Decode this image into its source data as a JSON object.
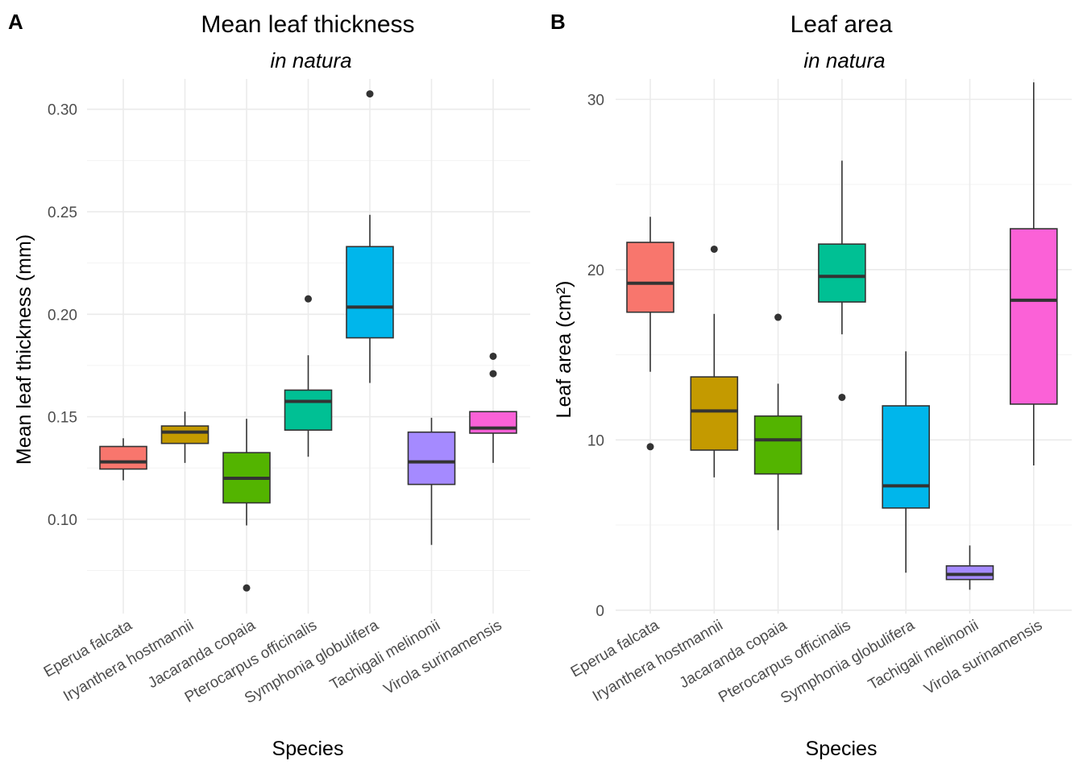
{
  "chart_data": [
    {
      "type": "boxplot",
      "tag": "A",
      "title": "Mean leaf thickness",
      "subtitle": "in natura",
      "xlabel": "Species",
      "ylabel": "Mean leaf thickness (mm)",
      "ylim": [
        0.054,
        0.3148
      ],
      "yticks": [
        0.1,
        0.15,
        0.2,
        0.25,
        0.3
      ],
      "ytick_labels": [
        "0.10",
        "0.15",
        "0.20",
        "0.25",
        "0.30"
      ],
      "grid": true,
      "legend": "none",
      "categories": [
        "Eperua falcata",
        "Iryanthera hostmannii",
        "Jacaranda copaia",
        "Pterocarpus officinalis",
        "Symphonia globulifera",
        "Tachigali melinonii",
        "Virola surinamensis"
      ],
      "colors": [
        "#F8766D",
        "#C49A00",
        "#53B400",
        "#00C094",
        "#00B6EB",
        "#A58AFF",
        "#FB61D7"
      ],
      "boxes": [
        {
          "min": 0.119,
          "q1": 0.1245,
          "median": 0.128,
          "q3": 0.1355,
          "max": 0.1395,
          "outliers": []
        },
        {
          "min": 0.1275,
          "q1": 0.137,
          "median": 0.1425,
          "q3": 0.1455,
          "max": 0.1525,
          "outliers": []
        },
        {
          "min": 0.097,
          "q1": 0.108,
          "median": 0.12,
          "q3": 0.1325,
          "max": 0.149,
          "outliers": [
            0.0665
          ]
        },
        {
          "min": 0.1305,
          "q1": 0.1435,
          "median": 0.1575,
          "q3": 0.163,
          "max": 0.18,
          "outliers": [
            0.2075
          ]
        },
        {
          "min": 0.1665,
          "q1": 0.1885,
          "median": 0.2035,
          "q3": 0.233,
          "max": 0.2485,
          "outliers": [
            0.3075
          ]
        },
        {
          "min": 0.0875,
          "q1": 0.117,
          "median": 0.128,
          "q3": 0.1425,
          "max": 0.1495,
          "outliers": []
        },
        {
          "min": 0.1275,
          "q1": 0.142,
          "median": 0.1445,
          "q3": 0.1525,
          "max": 0.1525,
          "outliers": [
            0.171,
            0.1795
          ]
        }
      ]
    },
    {
      "type": "boxplot",
      "tag": "B",
      "title": "Leaf area",
      "subtitle": "in natura",
      "xlabel": "Species",
      "ylabel": "Leaf area (cm²)",
      "ylim": [
        -0.2,
        31.2
      ],
      "yticks": [
        0,
        10,
        20,
        30
      ],
      "ytick_labels": [
        "0",
        "10",
        "20",
        "30"
      ],
      "grid": true,
      "legend": "none",
      "categories": [
        "Eperua falcata",
        "Iryanthera hostmannii",
        "Jacaranda copaia",
        "Pterocarpus officinalis",
        "Symphonia globulifera",
        "Tachigali melinonii",
        "Virola surinamensis"
      ],
      "colors": [
        "#F8766D",
        "#C49A00",
        "#53B400",
        "#00C094",
        "#00B6EB",
        "#A58AFF",
        "#FB61D7"
      ],
      "boxes": [
        {
          "min": 14.0,
          "q1": 17.5,
          "median": 19.2,
          "q3": 21.6,
          "max": 23.1,
          "outliers": [
            9.6
          ]
        },
        {
          "min": 7.8,
          "q1": 9.4,
          "median": 11.7,
          "q3": 13.7,
          "max": 17.4,
          "outliers": [
            21.2
          ]
        },
        {
          "min": 4.7,
          "q1": 8.0,
          "median": 10.0,
          "q3": 11.4,
          "max": 13.3,
          "outliers": [
            17.2
          ]
        },
        {
          "min": 16.2,
          "q1": 18.1,
          "median": 19.6,
          "q3": 21.5,
          "max": 26.4,
          "outliers": [
            12.5
          ]
        },
        {
          "min": 2.2,
          "q1": 6.0,
          "median": 7.3,
          "q3": 12.0,
          "max": 15.2,
          "outliers": []
        },
        {
          "min": 1.2,
          "q1": 1.8,
          "median": 2.1,
          "q3": 2.6,
          "max": 3.8,
          "outliers": []
        },
        {
          "min": 8.5,
          "q1": 12.1,
          "median": 18.2,
          "q3": 22.4,
          "max": 31.0,
          "outliers": []
        }
      ]
    }
  ]
}
